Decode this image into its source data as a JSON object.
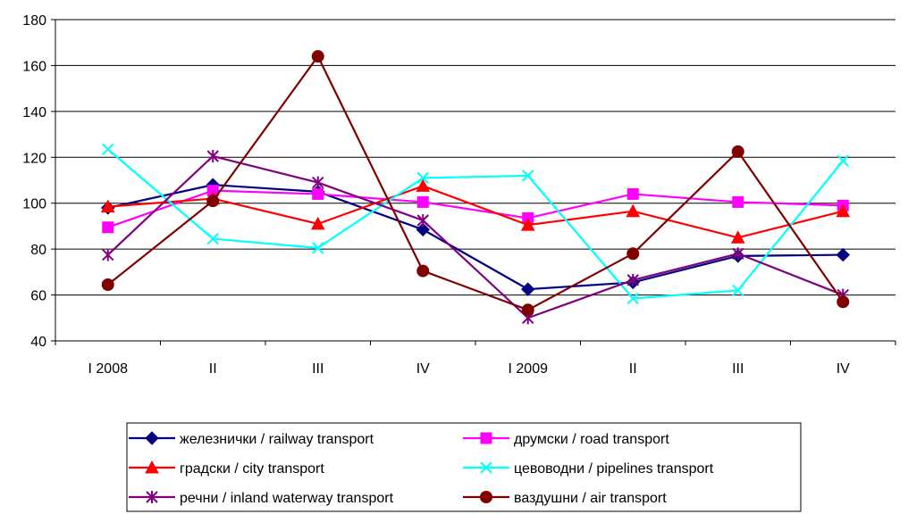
{
  "chart_data": {
    "type": "line",
    "categories": [
      "I 2008",
      "II",
      "III",
      "IV",
      "I 2009",
      "II",
      "III",
      "IV"
    ],
    "ylim": [
      40,
      180
    ],
    "yticks": [
      40,
      60,
      80,
      100,
      120,
      140,
      160,
      180
    ],
    "grid": true,
    "legend_position": "bottom",
    "series": [
      {
        "name": "железнички / railway transport",
        "color": "#000080",
        "marker": "diamond",
        "values": [
          98,
          108,
          105,
          88.5,
          62.5,
          65.5,
          77,
          77.5
        ]
      },
      {
        "name": "друмски / road transport",
        "color": "#ff00ff",
        "marker": "square",
        "values": [
          89.5,
          105.5,
          104,
          100.5,
          93.5,
          104,
          100.5,
          99
        ]
      },
      {
        "name": "градски / city transport",
        "color": "#ff0000",
        "marker": "triangle",
        "values": [
          98.5,
          102,
          91,
          107.5,
          90.5,
          96.5,
          85,
          96.5
        ]
      },
      {
        "name": "цевоводни / pipelines transport",
        "color": "#00ffff",
        "marker": "x",
        "values": [
          123.5,
          84.5,
          80.5,
          111,
          112,
          58.5,
          62,
          118.5
        ]
      },
      {
        "name": "речни / inland waterway transport",
        "color": "#800080",
        "marker": "asterisk",
        "values": [
          77.5,
          120.5,
          109,
          92.5,
          50,
          66.5,
          78,
          60
        ]
      },
      {
        "name": "ваздушни / air transport",
        "color": "#800000",
        "marker": "circle",
        "values": [
          64.5,
          101,
          164,
          70.5,
          53.5,
          78,
          122.5,
          57
        ]
      }
    ]
  }
}
